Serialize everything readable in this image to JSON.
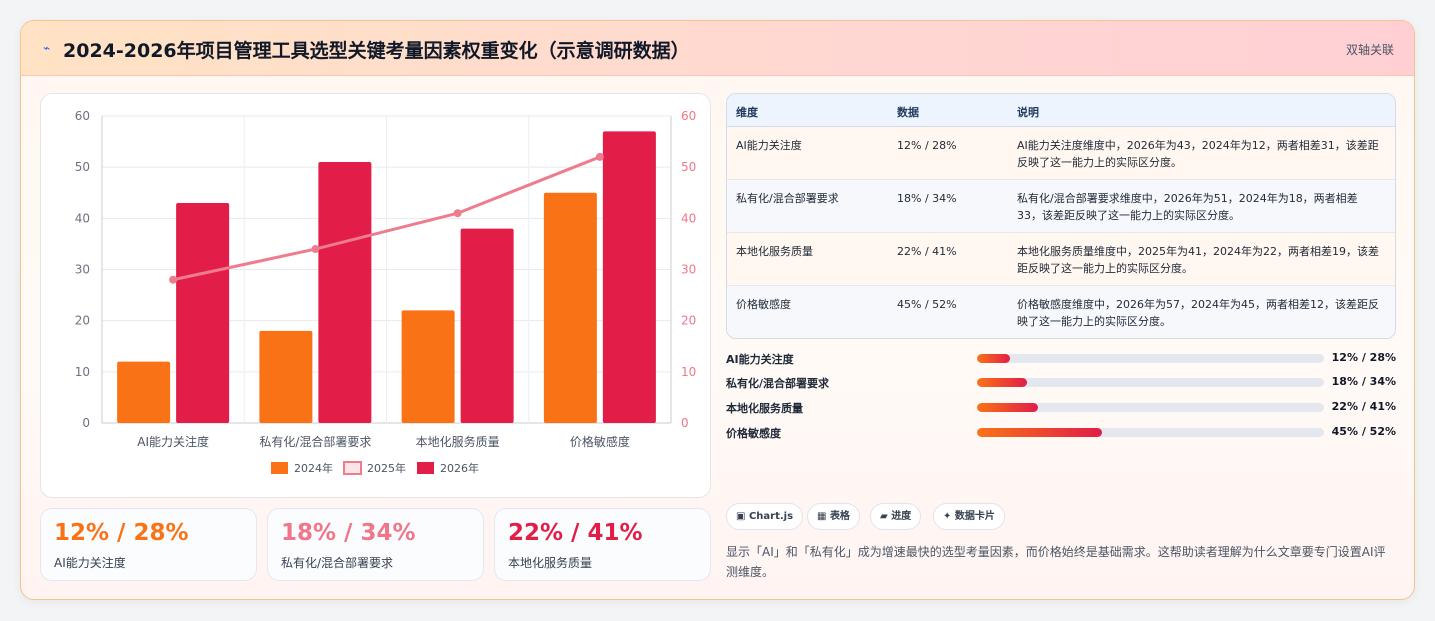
{
  "header": {
    "icon": "lightning-icon",
    "title": "2024-2026年项目管理工具选型关键考量因素权重变化（示意调研数据）",
    "badge": "双轴关联"
  },
  "chart_data": {
    "type": "bar",
    "categories": [
      "AI能力关注度",
      "私有化/混合部署要求",
      "本地化服务质量",
      "价格敏感度"
    ],
    "series": [
      {
        "name": "2024年",
        "type": "bar",
        "axis": "left",
        "color": "#f97316",
        "values": [
          12,
          18,
          22,
          45
        ]
      },
      {
        "name": "2025年",
        "type": "line",
        "axis": "right",
        "color": "#ef7b8e",
        "values": [
          28,
          34,
          41,
          52
        ]
      },
      {
        "name": "2026年",
        "type": "bar",
        "axis": "left",
        "color": "#e11d48",
        "values": [
          43,
          51,
          38,
          57
        ]
      }
    ],
    "y_left": {
      "min": 0,
      "max": 60,
      "ticks": [
        "0",
        "10",
        "20",
        "30",
        "40",
        "50",
        "60"
      ]
    },
    "y_right": {
      "min": 0,
      "max": 60,
      "ticks": [
        "0",
        "10",
        "20",
        "30",
        "40",
        "50",
        "60"
      ]
    },
    "grid": true,
    "legend_position": "bottom"
  },
  "table": {
    "headers": [
      "维度",
      "数据",
      "说明"
    ],
    "rows": [
      {
        "dim": "AI能力关注度",
        "data": "12% / 28%",
        "desc": "AI能力关注度维度中，2026年为43，2024年为12，两者相差31，该差距反映了这一能力上的实际区分度。"
      },
      {
        "dim": "私有化/混合部署要求",
        "data": "18% / 34%",
        "desc": "私有化/混合部署要求维度中，2026年为51，2024年为18，两者相差33，该差距反映了这一能力上的实际区分度。"
      },
      {
        "dim": "本地化服务质量",
        "data": "22% / 41%",
        "desc": "本地化服务质量维度中，2025年为41，2024年为22，两者相差19，该差距反映了这一能力上的实际区分度。"
      },
      {
        "dim": "价格敏感度",
        "data": "45% / 52%",
        "desc": "价格敏感度维度中，2026年为57，2024年为45，两者相差12，该差距反映了这一能力上的实际区分度。"
      }
    ]
  },
  "progress": [
    {
      "label": "AI能力关注度",
      "value": "12% / 28%",
      "fraction": 0.095
    },
    {
      "label": "私有化/混合部署要求",
      "value": "18% / 34%",
      "fraction": 0.145
    },
    {
      "label": "本地化服务质量",
      "value": "22% / 41%",
      "fraction": 0.175
    },
    {
      "label": "价格敏感度",
      "value": "45% / 52%",
      "fraction": 0.36
    }
  ],
  "stats": [
    {
      "value": "12% / 28%",
      "label": "AI能力关注度",
      "color": "#f97316"
    },
    {
      "value": "18% / 34%",
      "label": "私有化/混合部署要求",
      "color": "#f0768a"
    },
    {
      "value": "22% / 41%",
      "label": "本地化服务质量",
      "color": "#e11d48"
    }
  ],
  "chips": [
    {
      "icon": "image-icon",
      "glyph": "▣",
      "label": "Chart.js"
    },
    {
      "icon": "table-icon",
      "glyph": "▦",
      "label": "表格"
    },
    {
      "icon": "progress-icon",
      "glyph": "▰",
      "label": "进度"
    },
    {
      "icon": "sparkle-icon",
      "glyph": "✦",
      "label": "数据卡片"
    }
  ],
  "note": "显示「AI」和「私有化」成为增速最快的选型考量因素，而价格始终是基础需求。这帮助读者理解为什么文章要专门设置AI评测维度。"
}
